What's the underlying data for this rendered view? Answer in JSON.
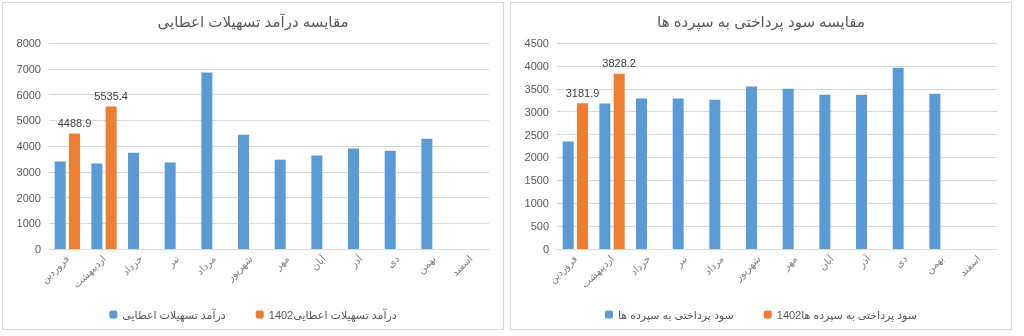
{
  "chart_data": [
    {
      "type": "bar",
      "title": "مقایسه درآمد تسهیلات اعطایی",
      "categories": [
        "فروردین",
        "اردیبهشت",
        "خرداد",
        "تیر",
        "مرداد",
        "شهریور",
        "مهر",
        "آبان",
        "آذر",
        "دی",
        "بهمن",
        "اسفند"
      ],
      "series": [
        {
          "name": "درآمد تسهیلات اعطایی",
          "color": "#5b9bd5",
          "values": [
            3400,
            3320,
            3740,
            3360,
            6850,
            4440,
            3470,
            3630,
            3900,
            3820,
            4280,
            null
          ]
        },
        {
          "name": "درآمد تسهیلات اعطایی1402",
          "color": "#ed7d31",
          "values": [
            4488.9,
            5535.4,
            null,
            null,
            null,
            null,
            null,
            null,
            null,
            null,
            null,
            null
          ],
          "value_labels": [
            "4488.9",
            "5535.4",
            null,
            null,
            null,
            null,
            null,
            null,
            null,
            null,
            null,
            null
          ]
        }
      ],
      "ylim": [
        0,
        8000
      ],
      "yticks": [
        0,
        1000,
        2000,
        3000,
        4000,
        5000,
        6000,
        7000,
        8000
      ],
      "grid": "y",
      "legend": "bottom"
    },
    {
      "type": "bar",
      "title": "مقایسه سود پرداختی به سپرده ها",
      "categories": [
        "فروردین",
        "اردیبهشت",
        "خرداد",
        "تیر",
        "مرداد",
        "شهریور",
        "مهر",
        "آبان",
        "آذر",
        "دی",
        "بهمن",
        "اسفند"
      ],
      "series": [
        {
          "name": "سود پرداختی به سپرده ها",
          "color": "#5b9bd5",
          "values": [
            2350,
            3180,
            3290,
            3290,
            3260,
            3550,
            3500,
            3370,
            3370,
            3960,
            3390,
            null
          ]
        },
        {
          "name": "سود پرداختی به سپرده ها1402",
          "color": "#ed7d31",
          "values": [
            3181.9,
            3828.2,
            null,
            null,
            null,
            null,
            null,
            null,
            null,
            null,
            null,
            null
          ],
          "value_labels": [
            "3181.9",
            "3828.2",
            null,
            null,
            null,
            null,
            null,
            null,
            null,
            null,
            null,
            null
          ]
        }
      ],
      "ylim": [
        0,
        4500
      ],
      "yticks": [
        0,
        500,
        1000,
        1500,
        2000,
        2500,
        3000,
        3500,
        4000,
        4500
      ],
      "grid": "y",
      "legend": "bottom"
    }
  ]
}
